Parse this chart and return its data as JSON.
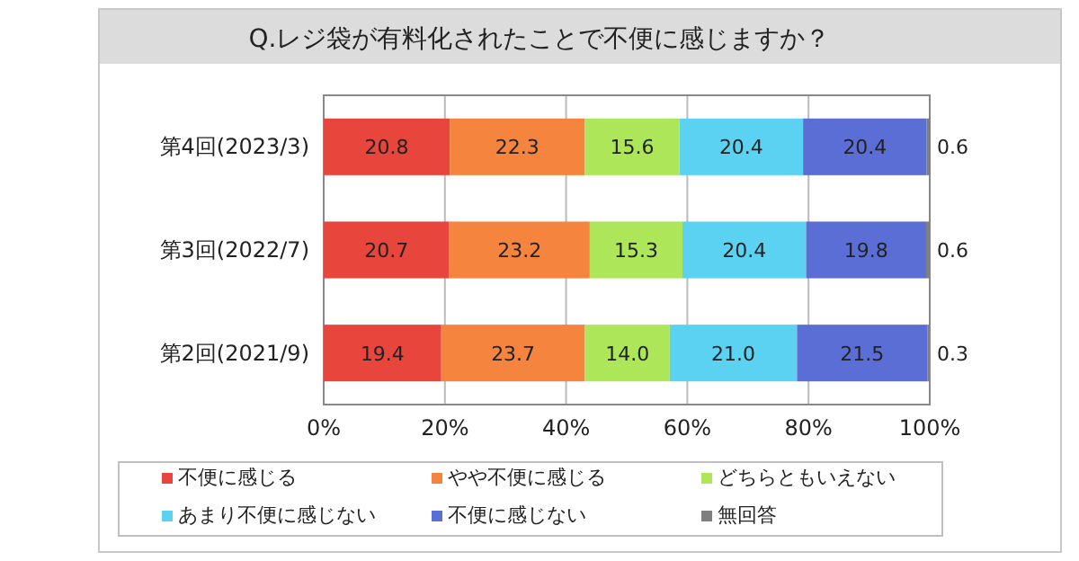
{
  "chart_data": {
    "type": "bar",
    "orientation": "horizontal",
    "stacked": true,
    "title": "Q.レジ袋が有料化されたことで不便に感じますか？",
    "categories": [
      "第4回(2023/3)",
      "第3回(2022/7)",
      "第2回(2021/9)"
    ],
    "series": [
      {
        "name": "不便に感じる",
        "color": "#e8453c",
        "values": [
          20.8,
          20.7,
          19.4
        ],
        "value_labels": [
          "20.8",
          "20.7",
          "19.4"
        ]
      },
      {
        "name": "やや不便に感じる",
        "color": "#f5843f",
        "values": [
          22.3,
          23.2,
          23.7
        ],
        "value_labels": [
          "22.3",
          "23.2",
          "23.7"
        ]
      },
      {
        "name": "どちらともいえない",
        "color": "#aee65a",
        "values": [
          15.6,
          15.3,
          14.0
        ],
        "value_labels": [
          "15.6",
          "15.3",
          "14.0"
        ]
      },
      {
        "name": "あまり不便に感じない",
        "color": "#5cd2f3",
        "values": [
          20.4,
          20.4,
          21.0
        ],
        "value_labels": [
          "20.4",
          "20.4",
          "21.0"
        ]
      },
      {
        "name": "不便に感じない",
        "color": "#5b6ed6",
        "values": [
          20.4,
          19.8,
          21.5
        ],
        "value_labels": [
          "20.4",
          "19.8",
          "21.5"
        ]
      },
      {
        "name": "無回答",
        "color": "#7f7f7f",
        "values": [
          0.6,
          0.6,
          0.3
        ],
        "value_labels": [
          "0.6",
          "0.6",
          "0.3"
        ]
      }
    ],
    "xlim": [
      0,
      100
    ],
    "xticks": [
      {
        "value": 0,
        "label": "0%"
      },
      {
        "value": 20,
        "label": "20%"
      },
      {
        "value": 40,
        "label": "40%"
      },
      {
        "value": 60,
        "label": "60%"
      },
      {
        "value": 80,
        "label": "80%"
      },
      {
        "value": 100,
        "label": "100%"
      }
    ],
    "grid": "x",
    "legend": "bottom"
  }
}
